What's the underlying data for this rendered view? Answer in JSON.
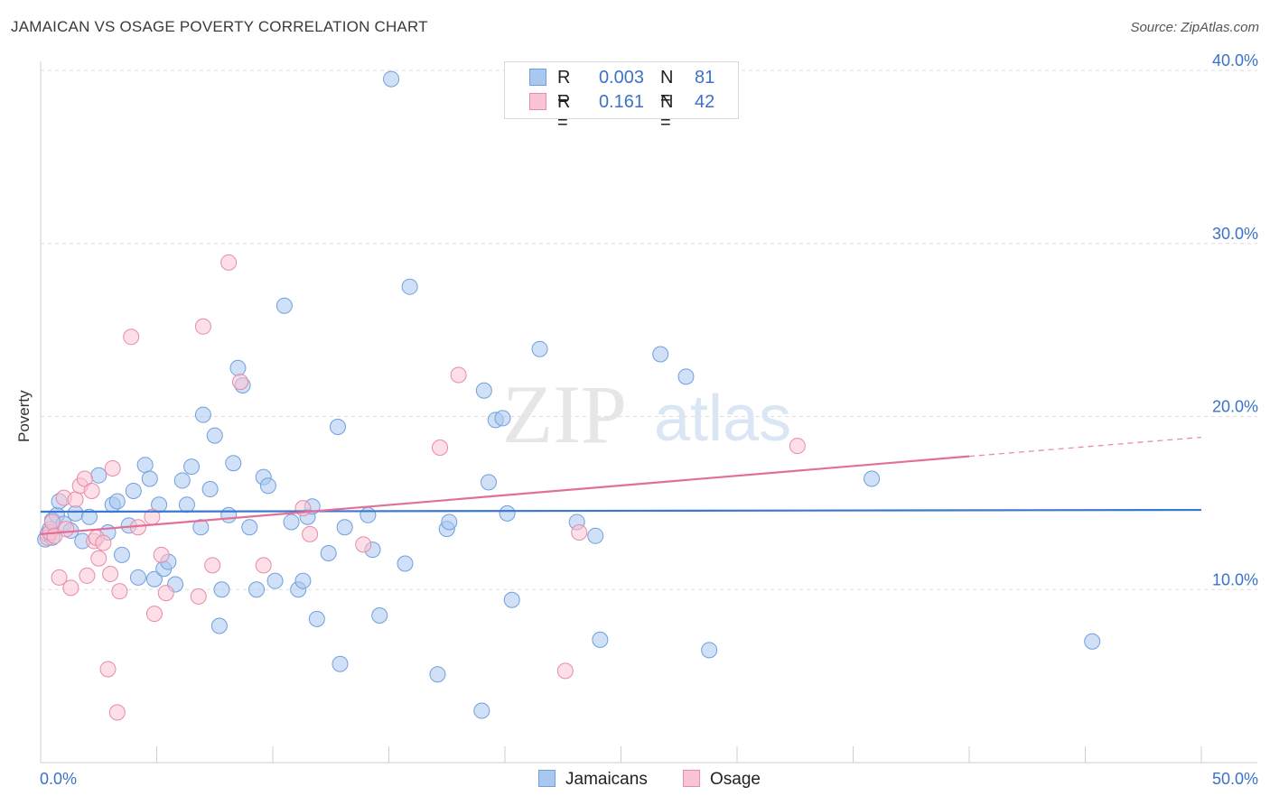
{
  "header": {
    "title": "JAMAICAN VS OSAGE POVERTY CORRELATION CHART",
    "source": "Source: ZipAtlas.com"
  },
  "legend": {
    "rows": [
      {
        "r_label": "R =",
        "r_value": "0.003",
        "n_label": "N =",
        "n_value": "81",
        "color": "#a9c8f0",
        "border": "#6f9fdc"
      },
      {
        "r_label": "R =",
        "r_value": "0.161",
        "n_label": "N =",
        "n_value": "42",
        "color": "#f9c4d3",
        "border": "#e98aa6"
      }
    ]
  },
  "bottom_legend": {
    "items": [
      {
        "label": "Jamaicans",
        "color": "#a9c8f0",
        "border": "#6f9fdc"
      },
      {
        "label": "Osage",
        "color": "#f9c4d3",
        "border": "#e98aa6"
      }
    ]
  },
  "watermark": {
    "part1": "ZIP",
    "part2": "atlas"
  },
  "chart_data": {
    "type": "scatter",
    "title": "JAMAICAN VS OSAGE POVERTY CORRELATION CHART",
    "xlabel": "",
    "ylabel": "Poverty",
    "xlim": [
      0,
      50
    ],
    "ylim": [
      0,
      40
    ],
    "x_tick_labels": [
      "0.0%",
      "50.0%"
    ],
    "y_ticks": [
      10,
      20,
      30,
      40
    ],
    "y_tick_labels": [
      "10.0%",
      "20.0%",
      "30.0%",
      "40.0%"
    ],
    "grid": true,
    "legend_position": "top-center",
    "series": [
      {
        "name": "Jamaicans",
        "color": "#a9c8f0",
        "stroke": "#6f9fdc",
        "trend": {
          "x": [
            0,
            50
          ],
          "y": [
            14.5,
            14.6
          ],
          "color": "#3b78d0"
        },
        "points": [
          [
            0.2,
            12.9
          ],
          [
            0.3,
            13.2
          ],
          [
            0.4,
            13.5
          ],
          [
            0.5,
            14.0
          ],
          [
            0.7,
            14.3
          ],
          [
            0.8,
            15.1
          ],
          [
            1.0,
            13.8
          ],
          [
            1.3,
            13.4
          ],
          [
            1.5,
            14.4
          ],
          [
            1.8,
            12.8
          ],
          [
            2.1,
            14.2
          ],
          [
            2.5,
            16.6
          ],
          [
            2.9,
            13.3
          ],
          [
            3.1,
            14.9
          ],
          [
            3.3,
            15.1
          ],
          [
            3.5,
            12.0
          ],
          [
            3.8,
            13.7
          ],
          [
            4.0,
            15.7
          ],
          [
            4.2,
            10.7
          ],
          [
            4.5,
            17.2
          ],
          [
            4.7,
            16.4
          ],
          [
            4.9,
            10.6
          ],
          [
            5.1,
            14.9
          ],
          [
            5.3,
            11.2
          ],
          [
            5.5,
            11.6
          ],
          [
            5.8,
            10.3
          ],
          [
            6.1,
            16.3
          ],
          [
            6.3,
            14.9
          ],
          [
            6.5,
            17.1
          ],
          [
            6.9,
            13.6
          ],
          [
            7.0,
            20.1
          ],
          [
            7.3,
            15.8
          ],
          [
            7.5,
            18.9
          ],
          [
            7.7,
            7.9
          ],
          [
            7.8,
            10.0
          ],
          [
            8.1,
            14.3
          ],
          [
            8.3,
            17.3
          ],
          [
            8.5,
            22.8
          ],
          [
            8.7,
            21.8
          ],
          [
            9.0,
            13.6
          ],
          [
            9.3,
            10.0
          ],
          [
            9.6,
            16.5
          ],
          [
            9.8,
            16.0
          ],
          [
            10.1,
            10.5
          ],
          [
            10.5,
            26.4
          ],
          [
            10.8,
            13.9
          ],
          [
            11.1,
            10.0
          ],
          [
            11.3,
            10.5
          ],
          [
            11.5,
            14.2
          ],
          [
            11.7,
            14.8
          ],
          [
            11.9,
            8.3
          ],
          [
            12.4,
            12.1
          ],
          [
            12.8,
            19.4
          ],
          [
            12.9,
            5.7
          ],
          [
            13.1,
            13.6
          ],
          [
            14.1,
            14.3
          ],
          [
            14.3,
            12.3
          ],
          [
            14.6,
            8.5
          ],
          [
            15.1,
            39.5
          ],
          [
            15.7,
            11.5
          ],
          [
            15.9,
            27.5
          ],
          [
            17.1,
            5.1
          ],
          [
            17.5,
            13.5
          ],
          [
            17.6,
            13.9
          ],
          [
            19.0,
            3.0
          ],
          [
            19.1,
            21.5
          ],
          [
            19.3,
            16.2
          ],
          [
            19.6,
            19.8
          ],
          [
            19.9,
            19.9
          ],
          [
            20.1,
            14.4
          ],
          [
            20.3,
            9.4
          ],
          [
            21.5,
            23.9
          ],
          [
            23.1,
            13.9
          ],
          [
            23.9,
            13.1
          ],
          [
            24.1,
            7.1
          ],
          [
            26.7,
            23.6
          ],
          [
            27.8,
            22.3
          ],
          [
            28.8,
            6.5
          ],
          [
            35.8,
            16.4
          ],
          [
            45.3,
            7.0
          ],
          [
            0.5,
            13.0
          ]
        ]
      },
      {
        "name": "Osage",
        "color": "#f9c4d3",
        "stroke": "#e98aa6",
        "trend": {
          "x": [
            0,
            40
          ],
          "y": [
            13.2,
            17.7
          ],
          "dash_to": [
            50,
            18.8
          ],
          "color": "#e36f97"
        },
        "points": [
          [
            0.3,
            13.0
          ],
          [
            0.4,
            13.3
          ],
          [
            0.5,
            13.9
          ],
          [
            0.6,
            13.1
          ],
          [
            0.8,
            10.7
          ],
          [
            1.0,
            15.3
          ],
          [
            1.1,
            13.5
          ],
          [
            1.3,
            10.1
          ],
          [
            1.5,
            15.2
          ],
          [
            1.7,
            16.0
          ],
          [
            1.9,
            16.4
          ],
          [
            2.0,
            10.8
          ],
          [
            2.2,
            15.7
          ],
          [
            2.3,
            12.8
          ],
          [
            2.4,
            13.0
          ],
          [
            2.5,
            11.8
          ],
          [
            2.7,
            12.7
          ],
          [
            2.9,
            5.4
          ],
          [
            3.0,
            10.9
          ],
          [
            3.1,
            17.0
          ],
          [
            3.3,
            2.9
          ],
          [
            3.4,
            9.9
          ],
          [
            3.9,
            24.6
          ],
          [
            4.2,
            13.6
          ],
          [
            4.8,
            14.2
          ],
          [
            4.9,
            8.6
          ],
          [
            5.2,
            12.0
          ],
          [
            5.4,
            9.8
          ],
          [
            6.8,
            9.6
          ],
          [
            7.0,
            25.2
          ],
          [
            7.4,
            11.4
          ],
          [
            8.1,
            28.9
          ],
          [
            8.6,
            22.0
          ],
          [
            9.6,
            11.4
          ],
          [
            11.3,
            14.7
          ],
          [
            11.6,
            13.2
          ],
          [
            13.9,
            12.6
          ],
          [
            17.2,
            18.2
          ],
          [
            18.0,
            22.4
          ],
          [
            22.6,
            5.3
          ],
          [
            23.2,
            13.3
          ],
          [
            32.6,
            18.3
          ]
        ]
      }
    ]
  }
}
